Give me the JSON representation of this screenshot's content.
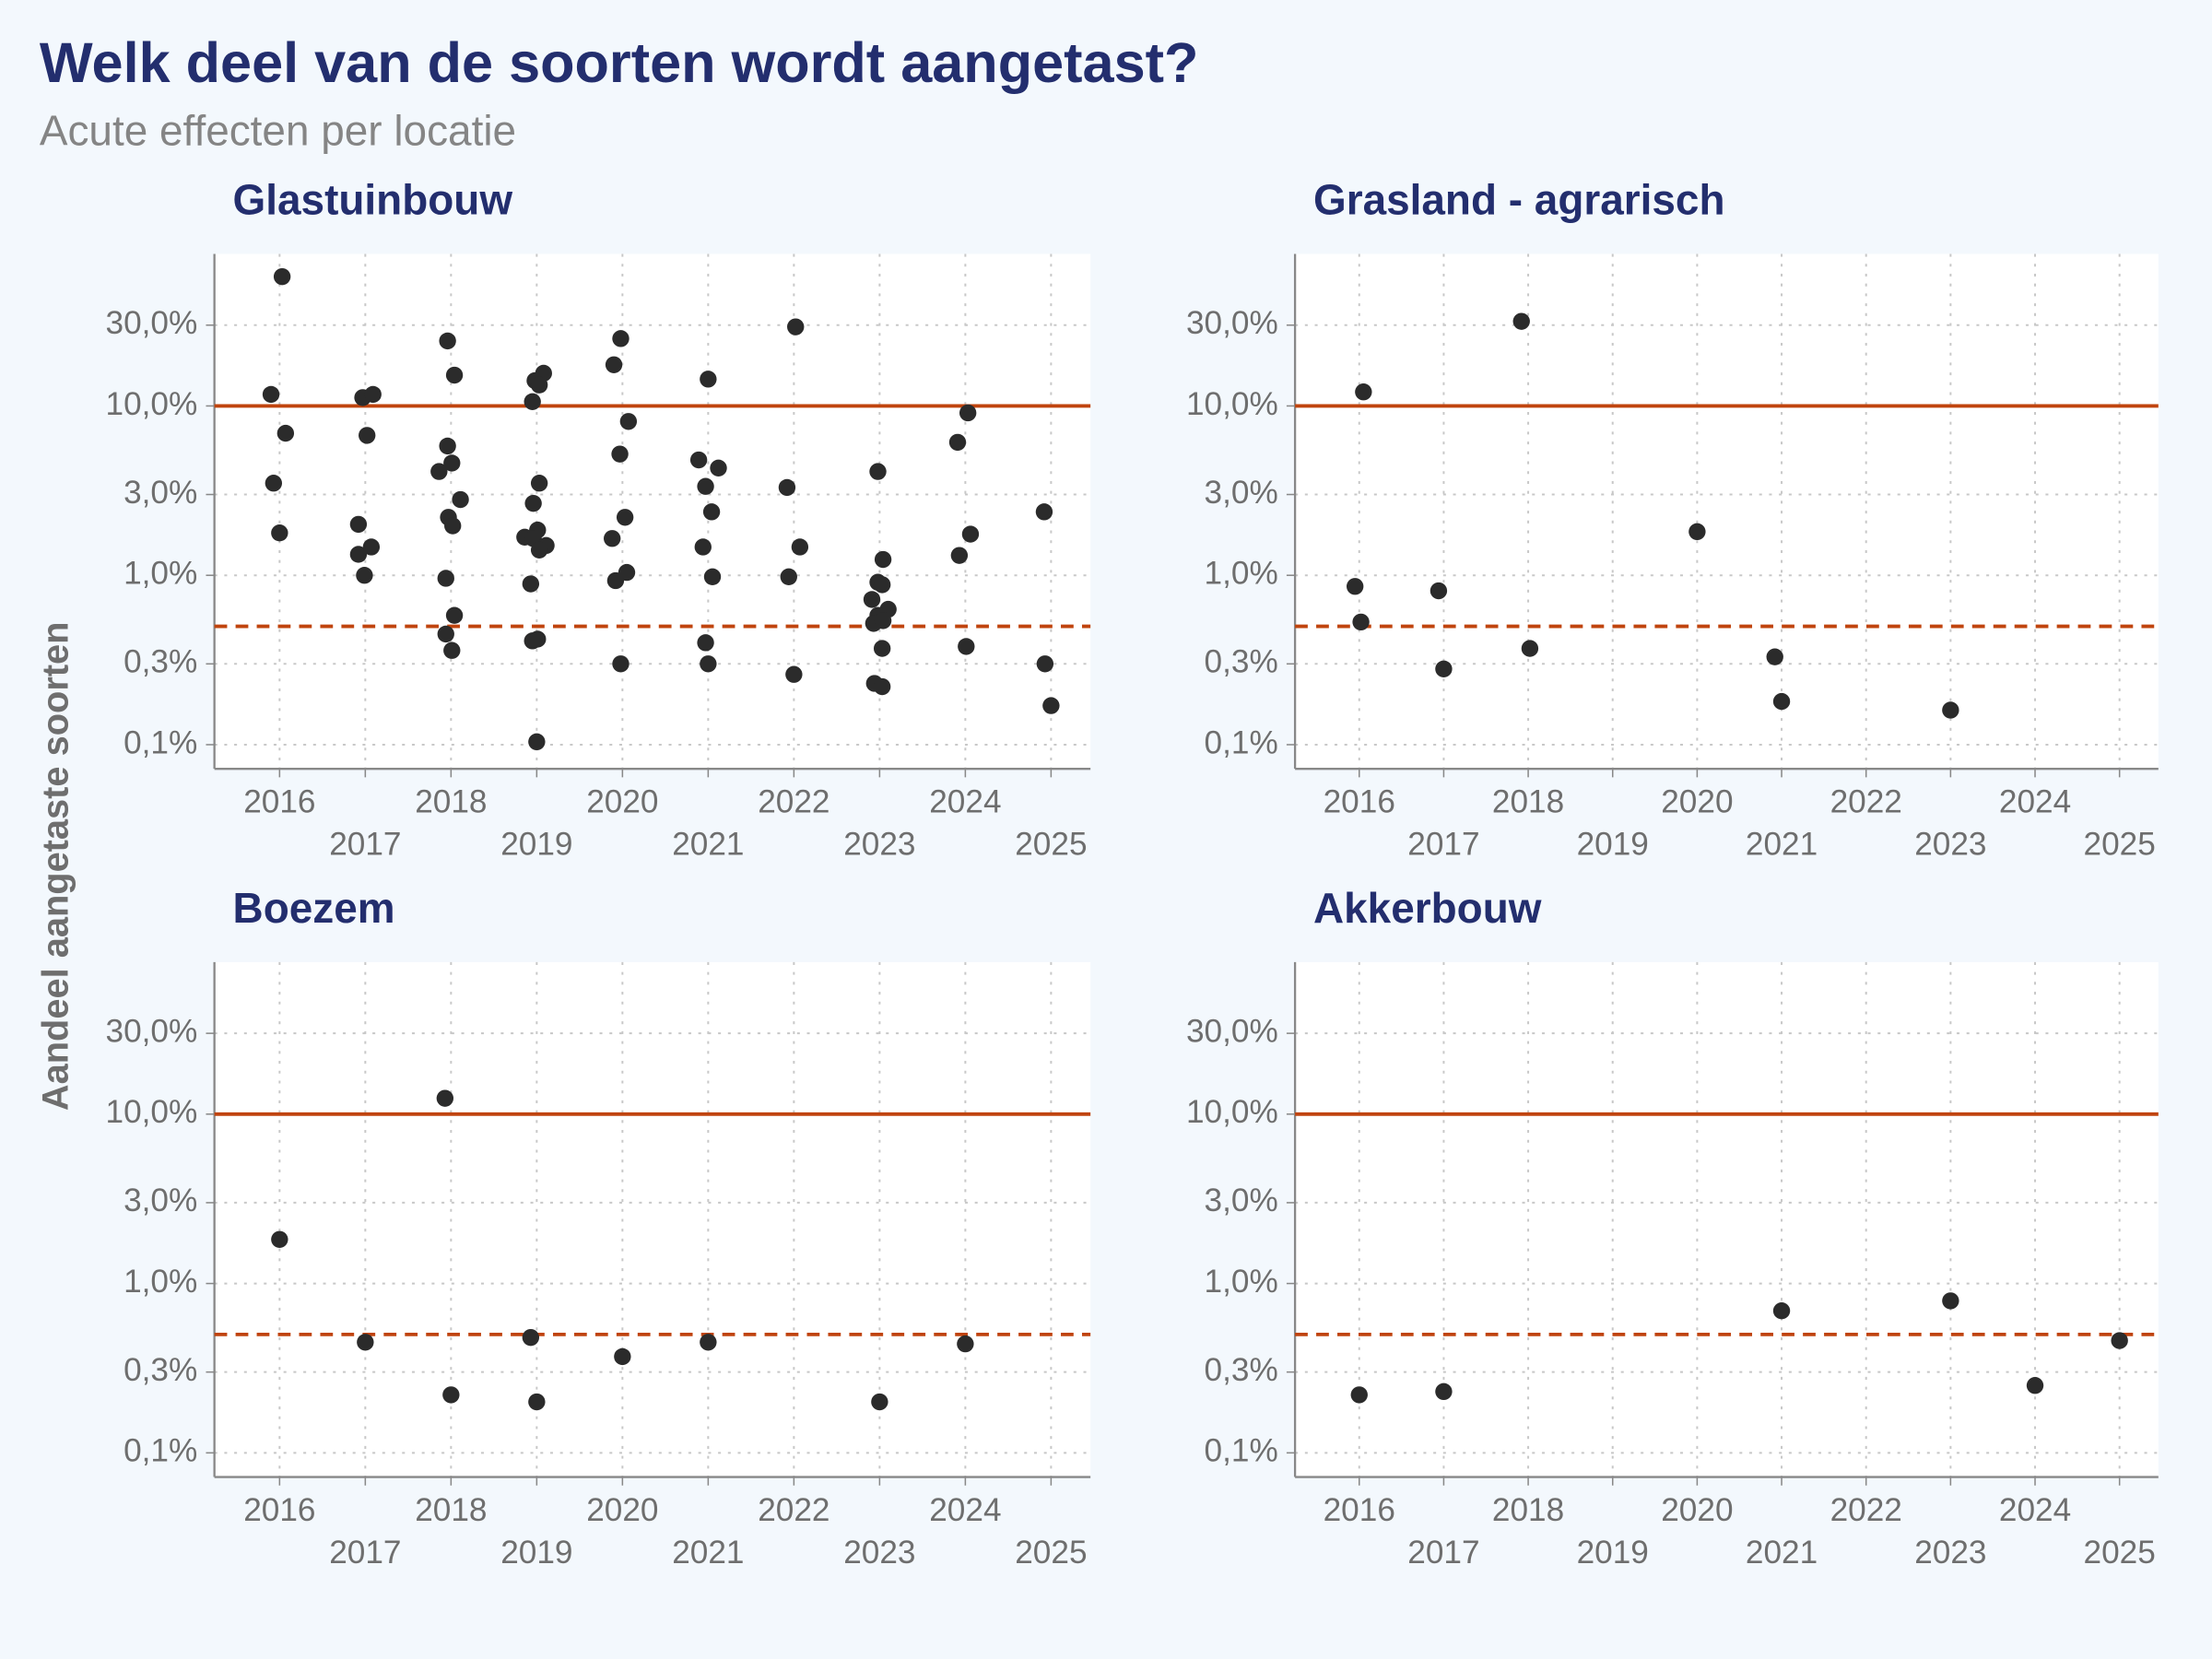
{
  "title": "Welk deel van de soorten wordt aangetast?",
  "subtitle": "Acute effecten per locatie",
  "y_label": "Aandeel aangetaste soorten",
  "chart_data": [
    {
      "type": "scatter",
      "title": "Glastuinbouw",
      "color": "#2b2b2b",
      "yscale": "log",
      "grid": true,
      "xlim": [
        2015.24,
        2025.46
      ],
      "ylim": [
        0.072,
        79
      ],
      "xticks": [
        2016,
        2017,
        2018,
        2019,
        2020,
        2021,
        2022,
        2023,
        2024,
        2025
      ],
      "yticks": [
        {
          "value": 0.1,
          "label": "0,1%"
        },
        {
          "value": 0.3,
          "label": "0,3%"
        },
        {
          "value": 1,
          "label": "1,0%"
        },
        {
          "value": 3,
          "label": "3,0%"
        },
        {
          "value": 10,
          "label": "10,0%"
        },
        {
          "value": 30,
          "label": "30,0%"
        }
      ],
      "hlines": [
        {
          "value": 10,
          "style": "solid",
          "color": "#c0440e"
        },
        {
          "value": 0.5,
          "style": "dashed",
          "color": "#c0440e"
        }
      ],
      "x": [
        2015.9,
        2016.03,
        2016.07,
        2015.93,
        2016.0,
        2016.97,
        2017.09,
        2017.02,
        2016.92,
        2016.92,
        2016.99,
        2017.07,
        2017.96,
        2018.04,
        2017.96,
        2018.01,
        2017.86,
        2018.11,
        2017.97,
        2018.02,
        2017.94,
        2018.04,
        2017.94,
        2018.01,
        2018.98,
        2019.08,
        2019.03,
        2018.95,
        2019.03,
        2018.96,
        2018.86,
        2019.01,
        2018.96,
        2019.11,
        2019.03,
        2018.93,
        2019.01,
        2018.95,
        2019.0,
        2019.98,
        2019.9,
        2020.07,
        2019.97,
        2020.03,
        2019.88,
        2020.05,
        2019.92,
        2019.98,
        2021.0,
        2020.89,
        2021.12,
        2020.97,
        2021.04,
        2020.94,
        2021.05,
        2020.97,
        2021.0,
        2022.02,
        2021.92,
        2022.07,
        2021.94,
        2022.0,
        2022.98,
        2023.04,
        2022.98,
        2023.03,
        2022.91,
        2023.1,
        2022.98,
        2022.93,
        2023.04,
        2023.03,
        2022.94,
        2023.03,
        2023.91,
        2024.03,
        2024.06,
        2023.93,
        2024.01,
        2024.92,
        2024.93,
        2025.0
      ],
      "values": [
        11.7,
        58,
        6.9,
        3.5,
        1.78,
        11.2,
        11.7,
        6.7,
        2.0,
        1.33,
        1.0,
        1.47,
        24.2,
        15.2,
        5.8,
        4.6,
        4.1,
        2.8,
        2.2,
        1.96,
        0.96,
        0.58,
        0.45,
        0.36,
        14.1,
        15.6,
        13.3,
        10.6,
        3.5,
        2.66,
        1.68,
        1.85,
        1.65,
        1.5,
        1.41,
        0.89,
        0.42,
        0.41,
        0.104,
        25,
        17.5,
        8.1,
        5.2,
        2.2,
        1.65,
        1.04,
        0.93,
        0.3,
        14.4,
        4.8,
        4.3,
        3.35,
        2.37,
        1.47,
        0.98,
        0.4,
        0.3,
        29.3,
        3.3,
        1.47,
        0.98,
        0.26,
        4.1,
        1.24,
        0.91,
        0.88,
        0.72,
        0.63,
        0.58,
        0.52,
        0.54,
        0.37,
        0.23,
        0.22,
        6.1,
        9.1,
        1.75,
        1.31,
        0.38,
        2.37,
        0.3,
        0.17
      ]
    },
    {
      "type": "scatter",
      "title": "Grasland - agrarisch",
      "color": "#2b2b2b",
      "yscale": "log",
      "grid": true,
      "xlim": [
        2015.24,
        2025.46
      ],
      "ylim": [
        0.072,
        79
      ],
      "xticks": [
        2016,
        2017,
        2018,
        2019,
        2020,
        2021,
        2022,
        2023,
        2024,
        2025
      ],
      "yticks": [
        {
          "value": 0.1,
          "label": "0,1%"
        },
        {
          "value": 0.3,
          "label": "0,3%"
        },
        {
          "value": 1,
          "label": "1,0%"
        },
        {
          "value": 3,
          "label": "3,0%"
        },
        {
          "value": 10,
          "label": "10,0%"
        },
        {
          "value": 30,
          "label": "30,0%"
        }
      ],
      "hlines": [
        {
          "value": 10,
          "style": "solid",
          "color": "#c0440e"
        },
        {
          "value": 0.5,
          "style": "dashed",
          "color": "#c0440e"
        }
      ],
      "x": [
        2016.05,
        2015.95,
        2016.02,
        2016.94,
        2017.0,
        2017.92,
        2018.02,
        2020.0,
        2020.92,
        2021.0,
        2023.0
      ],
      "values": [
        12.1,
        0.86,
        0.53,
        0.81,
        0.28,
        31.6,
        0.37,
        1.81,
        0.33,
        0.18,
        0.16
      ]
    },
    {
      "type": "scatter",
      "title": "Boezem",
      "color": "#2b2b2b",
      "yscale": "log",
      "grid": true,
      "xlim": [
        2015.24,
        2025.46
      ],
      "ylim": [
        0.072,
        79
      ],
      "xticks": [
        2016,
        2017,
        2018,
        2019,
        2020,
        2021,
        2022,
        2023,
        2024,
        2025
      ],
      "yticks": [
        {
          "value": 0.1,
          "label": "0,1%"
        },
        {
          "value": 0.3,
          "label": "0,3%"
        },
        {
          "value": 1,
          "label": "1,0%"
        },
        {
          "value": 3,
          "label": "3,0%"
        },
        {
          "value": 10,
          "label": "10,0%"
        },
        {
          "value": 30,
          "label": "30,0%"
        }
      ],
      "hlines": [
        {
          "value": 10,
          "style": "solid",
          "color": "#c0440e"
        },
        {
          "value": 0.5,
          "style": "dashed",
          "color": "#c0440e"
        }
      ],
      "x": [
        2016.0,
        2017.0,
        2017.93,
        2018.0,
        2018.93,
        2019.0,
        2020.0,
        2021.0,
        2023.0,
        2024.0
      ],
      "values": [
        1.82,
        0.45,
        12.4,
        0.22,
        0.48,
        0.2,
        0.37,
        0.45,
        0.2,
        0.44
      ]
    },
    {
      "type": "scatter",
      "title": "Akkerbouw",
      "color": "#2b2b2b",
      "yscale": "log",
      "grid": true,
      "xlim": [
        2015.24,
        2025.46
      ],
      "ylim": [
        0.072,
        79
      ],
      "xticks": [
        2016,
        2017,
        2018,
        2019,
        2020,
        2021,
        2022,
        2023,
        2024,
        2025
      ],
      "yticks": [
        {
          "value": 0.1,
          "label": "0,1%"
        },
        {
          "value": 0.3,
          "label": "0,3%"
        },
        {
          "value": 1,
          "label": "1,0%"
        },
        {
          "value": 3,
          "label": "3,0%"
        },
        {
          "value": 10,
          "label": "10,0%"
        },
        {
          "value": 30,
          "label": "30,0%"
        }
      ],
      "hlines": [
        {
          "value": 10,
          "style": "solid",
          "color": "#c0440e"
        },
        {
          "value": 0.5,
          "style": "dashed",
          "color": "#c0440e"
        }
      ],
      "x": [
        2016.0,
        2017.0,
        2021.0,
        2023.0,
        2024.0,
        2025.0
      ],
      "values": [
        0.22,
        0.23,
        0.69,
        0.79,
        0.25,
        0.46
      ]
    }
  ]
}
